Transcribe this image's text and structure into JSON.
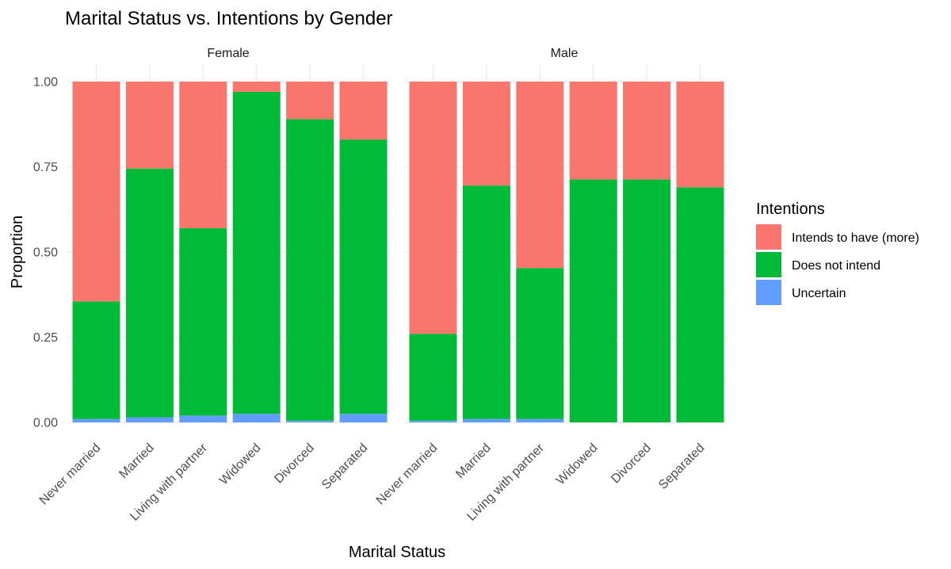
{
  "chart_data": {
    "type": "bar",
    "stacked": true,
    "title": "Marital Status vs. Intentions by Gender",
    "xlabel": "Marital Status",
    "ylabel": "Proportion",
    "ylim": [
      0,
      1
    ],
    "yticks": [
      "0.00",
      "0.25",
      "0.50",
      "0.75",
      "1.00"
    ],
    "grid": true,
    "legend_position": "right",
    "legend_title": "Intentions",
    "categories": [
      "Never married",
      "Married",
      "Living with partner",
      "Widowed",
      "Divorced",
      "Separated"
    ],
    "series": [
      {
        "name": "Intends to have (more)",
        "color": "#F8766D"
      },
      {
        "name": "Does not intend",
        "color": "#00BA38"
      },
      {
        "name": "Uncertain",
        "color": "#619CFF"
      }
    ],
    "facets": [
      {
        "name": "Female",
        "values": {
          "Intends to have (more)": [
            0.645,
            0.255,
            0.43,
            0.03,
            0.11,
            0.17
          ],
          "Does not intend": [
            0.345,
            0.73,
            0.55,
            0.945,
            0.885,
            0.805
          ],
          "Uncertain": [
            0.01,
            0.015,
            0.02,
            0.025,
            0.005,
            0.025
          ]
        }
      },
      {
        "name": "Male",
        "values": {
          "Intends to have (more)": [
            0.74,
            0.305,
            0.547,
            0.287,
            0.287,
            0.31
          ],
          "Does not intend": [
            0.255,
            0.685,
            0.443,
            0.713,
            0.713,
            0.69
          ],
          "Uncertain": [
            0.005,
            0.01,
            0.01,
            0.0,
            0.0,
            0.0
          ]
        }
      }
    ]
  }
}
